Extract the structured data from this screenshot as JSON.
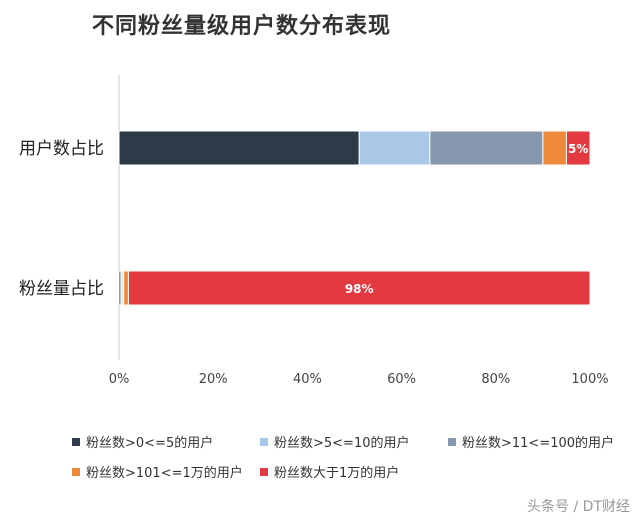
{
  "title": "不同粉丝量级用户数分布表现",
  "watermark": "头条号 / DT财经",
  "chart_data": {
    "type": "bar",
    "orientation": "horizontal",
    "stacked": true,
    "normalized": true,
    "categories": [
      "用户数占比",
      "粉丝量占比"
    ],
    "series": [
      {
        "name": "粉丝数>0<=5的用户",
        "color": "#2e3a47",
        "values": [
          51,
          0.4
        ]
      },
      {
        "name": "粉丝数>5<=10的用户",
        "color": "#a9c8e8",
        "values": [
          15,
          0.3
        ]
      },
      {
        "name": "粉丝数>11<=100的用户",
        "color": "#8798ae",
        "values": [
          24,
          0.3
        ]
      },
      {
        "name": "粉丝数>101<=1万的用户",
        "color": "#ee8a3a",
        "values": [
          5,
          1
        ]
      },
      {
        "name": "粉丝数大于1万的用户",
        "color": "#e23a3e",
        "values": [
          5,
          98
        ]
      }
    ],
    "data_labels": [
      {
        "category": "用户数占比",
        "series": "粉丝数大于1万的用户",
        "text": "5%"
      },
      {
        "category": "粉丝量占比",
        "series": "粉丝数大于1万的用户",
        "text": "98%"
      }
    ],
    "xlim": [
      0,
      100
    ],
    "xticks": [
      "0%",
      "20%",
      "40%",
      "60%",
      "80%",
      "100%"
    ],
    "grid": false,
    "legend_position": "bottom"
  }
}
